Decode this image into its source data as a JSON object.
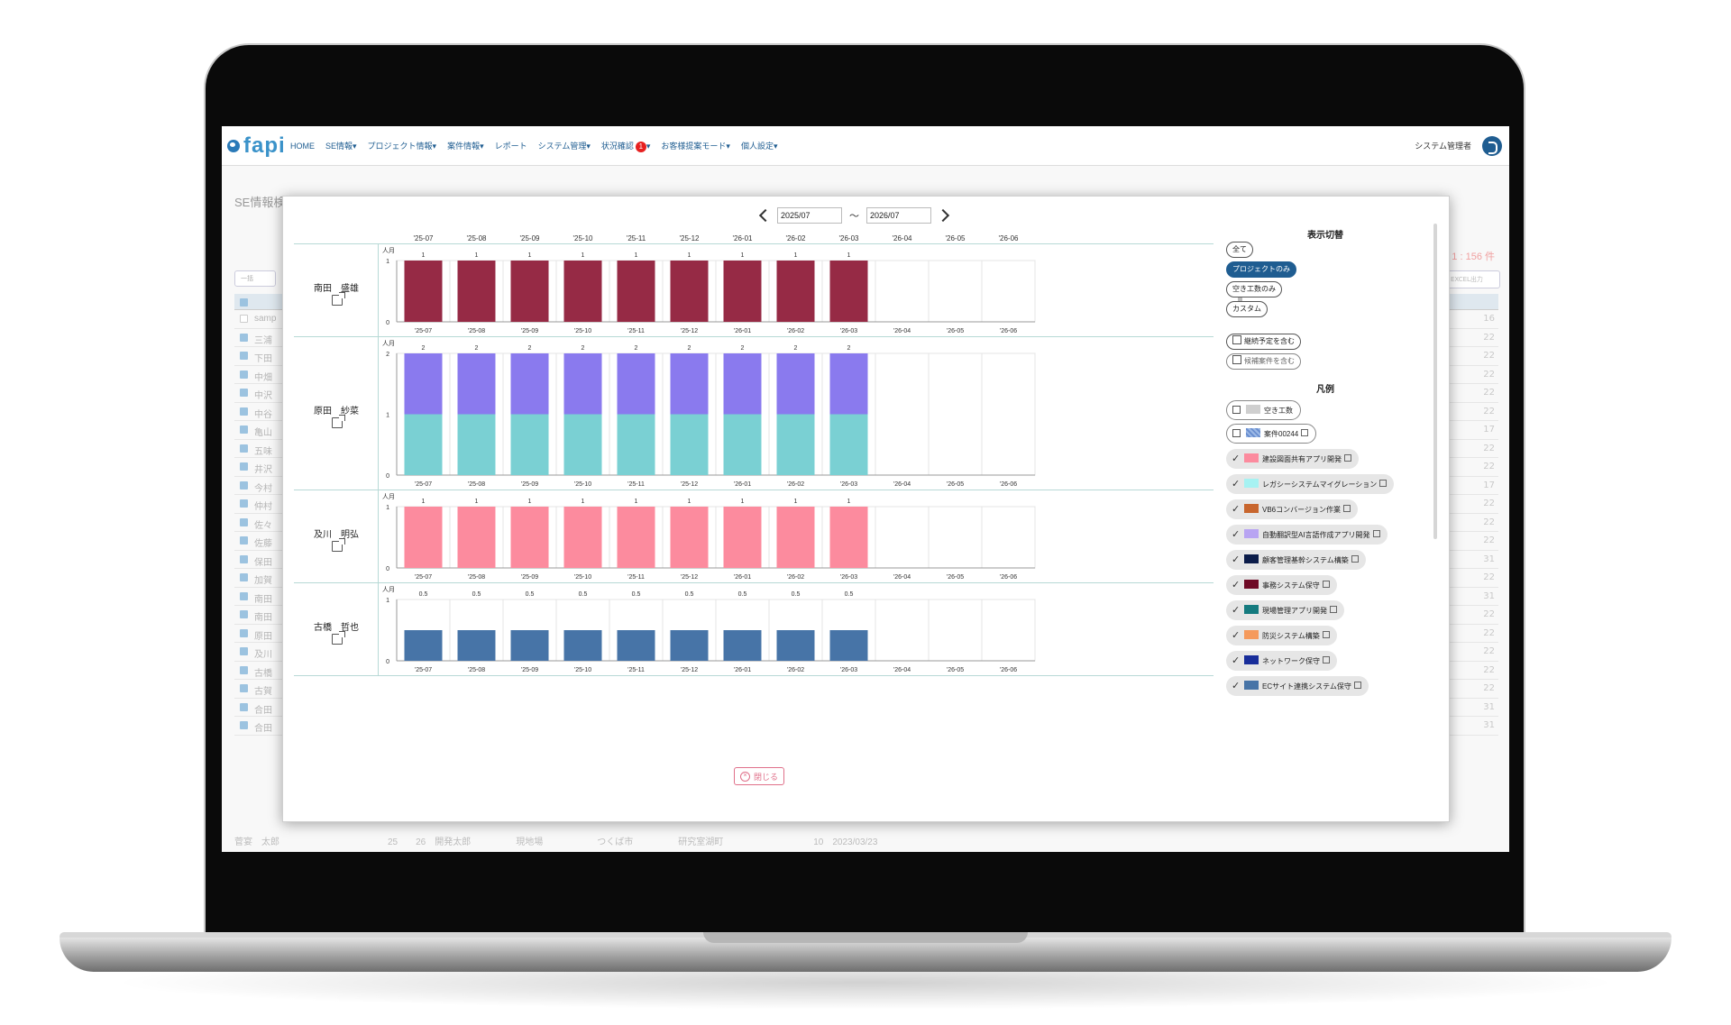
{
  "nav": {
    "logo": "fapi",
    "items": [
      {
        "label": "HOME"
      },
      {
        "label": "SE情報▾"
      },
      {
        "label": "プロジェクト情報▾"
      },
      {
        "label": "案件情報▾"
      },
      {
        "label": "レポート"
      },
      {
        "label": "システム管理▾"
      },
      {
        "label": "状況確認"
      },
      {
        "label": "お客様提案モード▾"
      },
      {
        "label": "個人設定▾"
      }
    ],
    "status_badge": "1",
    "status_suffix": "▾",
    "user": "システム管理者"
  },
  "background": {
    "title": "SE情報検索　高本面日本編本",
    "count": "1 : 156 件",
    "bulk_button": "一括",
    "excel_button": "EXCEL出力",
    "row_names": [
      "samp",
      "三浦",
      "下田",
      "中畑",
      "中沢",
      "中谷",
      "亀山",
      "五味",
      "井沢",
      "今村",
      "仲村",
      "佐々",
      "佐藤",
      "保田",
      "加賀",
      "南田",
      "南田",
      "原田",
      "及川",
      "古橋",
      "古賀",
      "合田",
      "合田"
    ],
    "right_values": [
      "16",
      "22",
      "22",
      "22",
      "22",
      "22",
      "17",
      "22",
      "22",
      "17",
      "22",
      "22",
      "22",
      "31",
      "22",
      "31",
      "22",
      "22",
      "22",
      "22",
      "22",
      "31",
      "31"
    ],
    "bottom_row": "菅宴　太郎　　　　　　　　　　　　25　　26　開発太郎　　　　　現地場　　　　　　つくば市　　　　　研究室湖町　　　　　　　　　　10　2023/03/23"
  },
  "modal": {
    "date_from": "2025/07",
    "date_to": "2026/07",
    "tilde": "〜",
    "close_label": "閉じる",
    "months": [
      "'25-07",
      "'25-08",
      "'25-09",
      "'25-10",
      "'25-11",
      "'25-12",
      "'26-01",
      "'26-02",
      "'26-03",
      "'26-04",
      "'26-05",
      "'26-06"
    ],
    "unit_label": "人月",
    "people": [
      {
        "name": "南田　盛雄",
        "ymax": 1,
        "yticks": [
          "1",
          "0"
        ],
        "values": [
          1,
          1,
          1,
          1,
          1,
          1,
          1,
          1,
          1
        ],
        "labels": [
          "1",
          "1",
          "1",
          "1",
          "1",
          "1",
          "1",
          "1",
          "1"
        ],
        "stacks": [
          {
            "color": "#962a45",
            "fraction": 1
          }
        ]
      },
      {
        "name": "原田　紗菜",
        "ymax": 2,
        "yticks": [
          "2",
          "1",
          "0"
        ],
        "values": [
          2,
          2,
          2,
          2,
          2,
          2,
          2,
          2,
          2
        ],
        "labels": [
          "2",
          "2",
          "2",
          "2",
          "2",
          "2",
          "2",
          "2",
          "2"
        ],
        "stacks": [
          {
            "color": "#7ad0d3",
            "fraction": 0.5
          },
          {
            "color": "#8a7aee",
            "fraction": 0.5
          }
        ]
      },
      {
        "name": "及川　明弘",
        "ymax": 1,
        "yticks": [
          "1",
          "0"
        ],
        "values": [
          1,
          1,
          1,
          1,
          1,
          1,
          1,
          1,
          1
        ],
        "labels": [
          "1",
          "1",
          "1",
          "1",
          "1",
          "1",
          "1",
          "1",
          "1"
        ],
        "stacks": [
          {
            "color": "#fc8b9e",
            "fraction": 1
          }
        ]
      },
      {
        "name": "古橋　哲也",
        "ymax": 1,
        "yticks": [
          "1",
          "0"
        ],
        "values": [
          0.5,
          0.5,
          0.5,
          0.5,
          0.5,
          0.5,
          0.5,
          0.5,
          0.5
        ],
        "labels": [
          "0.5",
          "0.5",
          "0.5",
          "0.5",
          "0.5",
          "0.5",
          "0.5",
          "0.5",
          "0.5"
        ],
        "stacks": [
          {
            "color": "#4774a7",
            "fraction": 1
          }
        ]
      }
    ]
  },
  "legend": {
    "display_title": "表示切替",
    "display_options": [
      {
        "label": "全て",
        "active": false
      },
      {
        "label": "プロジェクトのみ",
        "active": true
      },
      {
        "label": "空き工数のみ",
        "active": false
      },
      {
        "label": "カスタム",
        "active": false
      }
    ],
    "continuation_option": "継続予定を含む",
    "candidate_option": "候補案件を含む",
    "legend_title": "凡例",
    "items": [
      {
        "label": "空き工数",
        "color": "#cfcfcf",
        "checked": false,
        "ext": false
      },
      {
        "label": "案件00244",
        "color": "#9cb9e6",
        "checked": false,
        "ext": true
      },
      {
        "label": "建設図面共有アプリ開発",
        "color": "#fc8b9e",
        "checked": true,
        "ext": true
      },
      {
        "label": "レガシーシステムマイグレーション",
        "color": "#a6f2f2",
        "checked": true,
        "ext": true
      },
      {
        "label": "VB6コンバージョン作業",
        "color": "#c8662e",
        "checked": true,
        "ext": true
      },
      {
        "label": "自動翻訳型AI言語作成アプリ開発",
        "color": "#b8a4f2",
        "checked": true,
        "ext": true
      },
      {
        "label": "顧客管理基幹システム構築",
        "color": "#0c1d4a",
        "checked": true,
        "ext": true
      },
      {
        "label": "事務システム保守",
        "color": "#6f0a26",
        "checked": true,
        "ext": true
      },
      {
        "label": "現場管理アプリ開発",
        "color": "#157b7f",
        "checked": true,
        "ext": true
      },
      {
        "label": "防災システム構築",
        "color": "#f59a5c",
        "checked": true,
        "ext": true
      },
      {
        "label": "ネットワーク保守",
        "color": "#182d9a",
        "checked": true,
        "ext": true
      },
      {
        "label": "ECサイト連携システム保守",
        "color": "#4774a7",
        "checked": true,
        "ext": true
      }
    ]
  }
}
